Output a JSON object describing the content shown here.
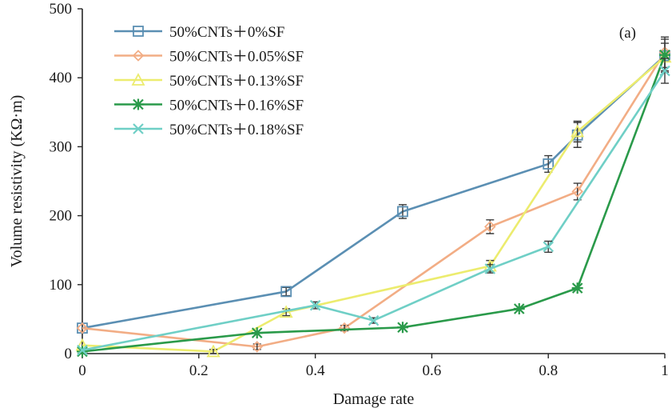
{
  "chart_data": {
    "type": "line",
    "annotation": "(a)",
    "xlabel": "Damage rate",
    "ylabel": "Volume resistivity (KΩ·m)",
    "xlim": [
      0,
      1
    ],
    "ylim": [
      0,
      500
    ],
    "x_ticks": [
      0,
      0.2,
      0.4,
      0.6,
      0.8,
      1
    ],
    "x_tick_labels": [
      "0",
      "0.2",
      "0.4",
      "0.6",
      "0.8",
      "1"
    ],
    "y_ticks": [
      0,
      100,
      200,
      300,
      400,
      500
    ],
    "y_tick_labels": [
      "0",
      "100",
      "200",
      "300",
      "400",
      "500"
    ],
    "grid": false,
    "legend_position": "top-left",
    "series": [
      {
        "name": "50%CNTs＋0%SF",
        "color": "#5b8fb3",
        "marker": "square",
        "points": [
          [
            0,
            37
          ],
          [
            0.35,
            90
          ],
          [
            0.55,
            206
          ],
          [
            0.8,
            275
          ],
          [
            0.85,
            317
          ],
          [
            1,
            432
          ]
        ],
        "errors": [
          0,
          6,
          10,
          12,
          18,
          24
        ]
      },
      {
        "name": "50%CNTs＋0.05%SF",
        "color": "#f2ad85",
        "marker": "diamond",
        "points": [
          [
            0,
            37
          ],
          [
            0.3,
            10
          ],
          [
            0.45,
            37
          ],
          [
            0.7,
            184
          ],
          [
            0.85,
            235
          ],
          [
            1,
            437
          ]
        ],
        "errors": [
          0,
          4,
          4,
          10,
          12,
          22
        ]
      },
      {
        "name": "50%CNTs＋0.13%SF",
        "color": "#ecec6e",
        "marker": "triangle",
        "points": [
          [
            0,
            12
          ],
          [
            0.225,
            3
          ],
          [
            0.35,
            60
          ],
          [
            0.7,
            127
          ],
          [
            0.85,
            322
          ],
          [
            1,
            430
          ]
        ],
        "errors": [
          0,
          3,
          5,
          8,
          15,
          20
        ]
      },
      {
        "name": "50%CNTs＋0.16%SF",
        "color": "#2a9a4a",
        "marker": "star",
        "points": [
          [
            0,
            3
          ],
          [
            0.3,
            30
          ],
          [
            0.55,
            38
          ],
          [
            0.75,
            65
          ],
          [
            0.85,
            95
          ],
          [
            1,
            433
          ]
        ],
        "errors": [
          0,
          0,
          0,
          0,
          0,
          0
        ]
      },
      {
        "name": "50%CNTs＋0.18%SF",
        "color": "#6fcfc6",
        "marker": "x",
        "points": [
          [
            0,
            5
          ],
          [
            0.4,
            70
          ],
          [
            0.5,
            48
          ],
          [
            0.7,
            123
          ],
          [
            0.8,
            155
          ],
          [
            1,
            410
          ]
        ],
        "errors": [
          0,
          5,
          4,
          6,
          8,
          18
        ]
      }
    ]
  }
}
